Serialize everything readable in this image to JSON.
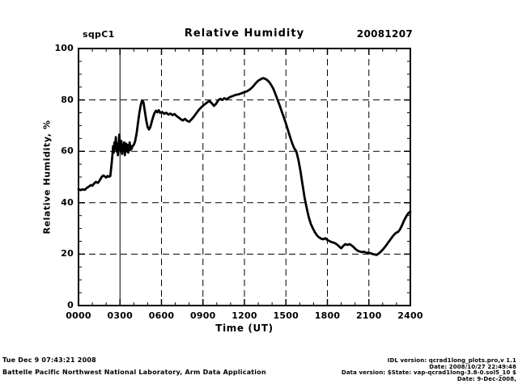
{
  "header": {
    "site_label": "sqpC1",
    "title": "Relative Humidity",
    "date_label": "20081207"
  },
  "footer": {
    "timestamp": "Tue Dec  9 07:43:21 2008",
    "organization": "Battelle Pacific Northwest National Laboratory, Arm Data Application",
    "idl_version": "IDL version: qcrad1long_plots.pro,v 1.1",
    "idl_date": "Date: 2008/10/27 22:49:48",
    "data_version": "Data version: $State: vap-qcrad1long-3.8-0.sol5_10 $",
    "data_date": "Date: 9-Dec-2008,"
  },
  "colors": {
    "background": "#ffffff",
    "line": "#000000",
    "axis": "#000000",
    "grid": "#000000"
  },
  "chart_data": {
    "type": "line",
    "title": "Relative Humidity",
    "xlabel": "Time (UT)",
    "ylabel": "Relative Humidity, %",
    "xlim": [
      0,
      24
    ],
    "ylim": [
      0,
      100
    ],
    "x_ticks": [
      0,
      3,
      6,
      9,
      12,
      15,
      18,
      21,
      24
    ],
    "x_tick_labels": [
      "0000",
      "0300",
      "0600",
      "0900",
      "1200",
      "1500",
      "1800",
      "2100",
      "2400"
    ],
    "x_minor_step": 1,
    "y_ticks": [
      0,
      20,
      40,
      60,
      80,
      100
    ],
    "y_tick_labels": [
      "0",
      "20",
      "40",
      "60",
      "80",
      "100"
    ],
    "y_minor_step": 5,
    "grid": "dashed-at-major-ticks",
    "solid_vline_x": [
      3
    ],
    "legend": "none",
    "series": [
      {
        "name": "relative_humidity",
        "x": [
          0.0,
          0.15,
          0.3,
          0.45,
          0.6,
          0.75,
          0.9,
          1.0,
          1.1,
          1.25,
          1.4,
          1.5,
          1.6,
          1.7,
          1.8,
          1.9,
          2.0,
          2.1,
          2.2,
          2.3,
          2.38,
          2.45,
          2.5,
          2.55,
          2.6,
          2.65,
          2.7,
          2.75,
          2.8,
          2.85,
          2.9,
          2.95,
          3.0,
          3.05,
          3.1,
          3.15,
          3.2,
          3.25,
          3.3,
          3.35,
          3.4,
          3.45,
          3.5,
          3.55,
          3.6,
          3.65,
          3.7,
          3.75,
          3.8,
          3.85,
          3.9,
          4.0,
          4.1,
          4.2,
          4.3,
          4.4,
          4.5,
          4.6,
          4.7,
          4.8,
          4.9,
          5.0,
          5.1,
          5.2,
          5.3,
          5.4,
          5.5,
          5.6,
          5.7,
          5.8,
          5.9,
          6.05,
          6.2,
          6.35,
          6.5,
          6.65,
          6.8,
          6.95,
          7.1,
          7.25,
          7.4,
          7.55,
          7.7,
          7.85,
          8.0,
          8.15,
          8.3,
          8.45,
          8.6,
          8.75,
          8.9,
          9.05,
          9.2,
          9.35,
          9.5,
          9.65,
          9.8,
          9.95,
          10.1,
          10.25,
          10.4,
          10.55,
          10.7,
          10.85,
          11.0,
          11.2,
          11.4,
          11.6,
          11.8,
          12.0,
          12.2,
          12.4,
          12.6,
          12.8,
          13.0,
          13.2,
          13.35,
          13.5,
          13.65,
          13.8,
          13.95,
          14.1,
          14.25,
          14.4,
          14.55,
          14.7,
          14.85,
          15.0,
          15.15,
          15.3,
          15.45,
          15.6,
          15.75,
          15.9,
          16.05,
          16.2,
          16.35,
          16.5,
          16.65,
          16.8,
          16.95,
          17.1,
          17.25,
          17.4,
          17.55,
          17.7,
          17.85,
          18.0,
          18.15,
          18.3,
          18.45,
          18.6,
          18.75,
          18.9,
          19.0,
          19.15,
          19.3,
          19.45,
          19.6,
          19.75,
          19.9,
          20.05,
          20.2,
          20.35,
          20.5,
          20.65,
          20.8,
          20.95,
          21.1,
          21.25,
          21.4,
          21.55,
          21.7,
          21.85,
          22.0,
          22.15,
          22.3,
          22.45,
          22.6,
          22.75,
          22.9,
          23.0,
          23.1,
          23.25,
          23.4,
          23.55,
          23.7,
          23.85,
          24.0
        ],
        "y": [
          45.3,
          44.9,
          45.2,
          45.0,
          45.8,
          46.3,
          46.9,
          46.6,
          47.3,
          48.1,
          47.7,
          48.4,
          49.3,
          50.2,
          50.6,
          50.2,
          49.8,
          50.4,
          50.1,
          50.4,
          54.5,
          58.5,
          62.0,
          59.5,
          63.5,
          61.0,
          65.5,
          60.0,
          63.0,
          58.5,
          62.0,
          66.5,
          63.0,
          60.0,
          64.0,
          59.0,
          62.5,
          60.5,
          63.5,
          58.5,
          61.5,
          63.0,
          60.0,
          62.5,
          59.5,
          61.0,
          63.5,
          60.5,
          62.0,
          61.0,
          62.0,
          62.5,
          64.0,
          67.0,
          71.0,
          75.0,
          78.0,
          79.8,
          79.0,
          75.5,
          72.0,
          69.5,
          68.5,
          69.5,
          71.5,
          73.5,
          75.0,
          75.8,
          75.2,
          76.0,
          75.0,
          75.3,
          74.6,
          75.0,
          74.3,
          74.7,
          74.1,
          74.5,
          73.7,
          73.1,
          72.5,
          72.0,
          72.6,
          71.9,
          71.5,
          72.3,
          73.2,
          74.3,
          75.4,
          76.4,
          77.2,
          78.0,
          78.6,
          79.2,
          79.5,
          78.6,
          77.7,
          78.5,
          79.8,
          80.4,
          80.0,
          80.7,
          80.2,
          80.8,
          81.2,
          81.6,
          82.0,
          82.2,
          82.6,
          83.0,
          83.4,
          84.1,
          85.1,
          86.4,
          87.5,
          88.1,
          88.5,
          88.2,
          87.7,
          86.9,
          85.7,
          84.2,
          82.2,
          80.0,
          77.8,
          75.5,
          73.2,
          70.8,
          68.2,
          65.6,
          63.2,
          61.2,
          60.0,
          56.8,
          52.4,
          47.0,
          42.0,
          38.0,
          34.5,
          31.8,
          30.0,
          28.5,
          27.3,
          26.5,
          26.0,
          25.8,
          26.2,
          25.5,
          25.1,
          24.7,
          24.5,
          24.1,
          23.5,
          22.7,
          22.3,
          23.2,
          23.9,
          23.6,
          23.9,
          23.4,
          22.7,
          21.9,
          21.3,
          21.0,
          20.8,
          20.9,
          20.6,
          20.5,
          20.4,
          20.1,
          19.9,
          19.7,
          20.2,
          20.9,
          21.7,
          22.7,
          23.8,
          24.9,
          26.0,
          27.1,
          28.0,
          28.4,
          28.6,
          29.6,
          31.3,
          33.1,
          34.7,
          35.9,
          36.5
        ]
      }
    ]
  }
}
